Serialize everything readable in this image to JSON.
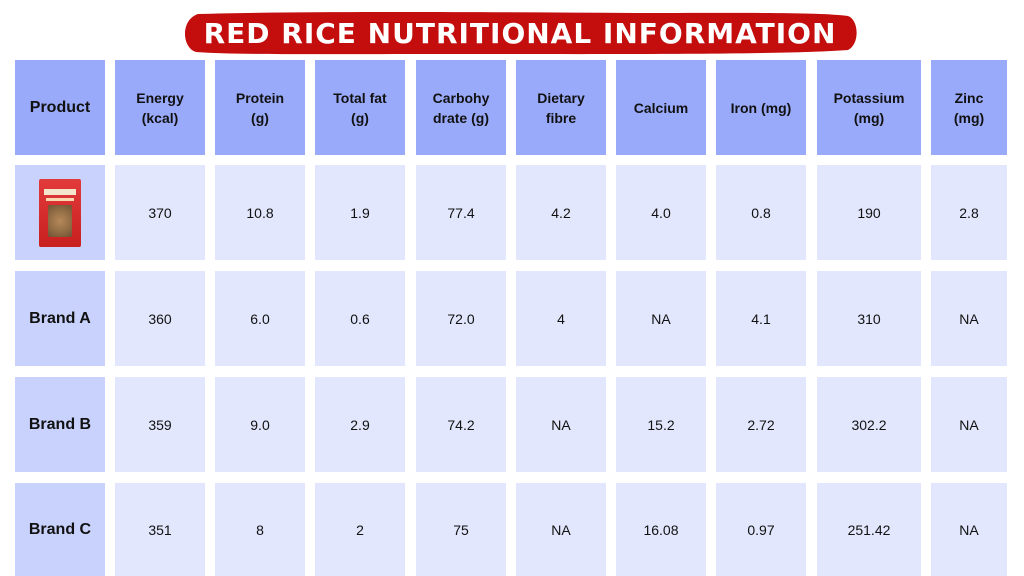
{
  "title": "RED RICE NUTRITIONAL INFORMATION",
  "colors": {
    "banner": "#c40d0d",
    "header_cell": "#9aaafb",
    "product_cell": "#c9d2fd",
    "value_cell": "#e3e7fd"
  },
  "headers": [
    [
      "Product"
    ],
    [
      "Energy",
      "(kcal)"
    ],
    [
      "Protein",
      "(g)"
    ],
    [
      "Total fat",
      "(g)"
    ],
    [
      "Carbohy",
      "drate (g)"
    ],
    [
      "Dietary",
      "fibre"
    ],
    [
      "Calcium"
    ],
    [
      "Iron (mg)"
    ],
    [
      "Potassium",
      "(mg)"
    ],
    [
      "Zinc",
      "(mg)"
    ]
  ],
  "rows": [
    {
      "product": "",
      "image": "red-rice-package-icon",
      "values": [
        "370",
        "10.8",
        "1.9",
        "77.4",
        "4.2",
        "4.0",
        "0.8",
        "190",
        "2.8"
      ]
    },
    {
      "product": "Brand A",
      "values": [
        "360",
        "6.0",
        "0.6",
        "72.0",
        "4",
        "NA",
        "4.1",
        "310",
        "NA"
      ]
    },
    {
      "product": "Brand B",
      "values": [
        "359",
        "9.0",
        "2.9",
        "74.2",
        "NA",
        "15.2",
        "2.72",
        "302.2",
        "NA"
      ]
    },
    {
      "product": "Brand C",
      "values": [
        "351",
        "8",
        "2",
        "75",
        "NA",
        "16.08",
        "0.97",
        "251.42",
        "NA"
      ]
    }
  ]
}
